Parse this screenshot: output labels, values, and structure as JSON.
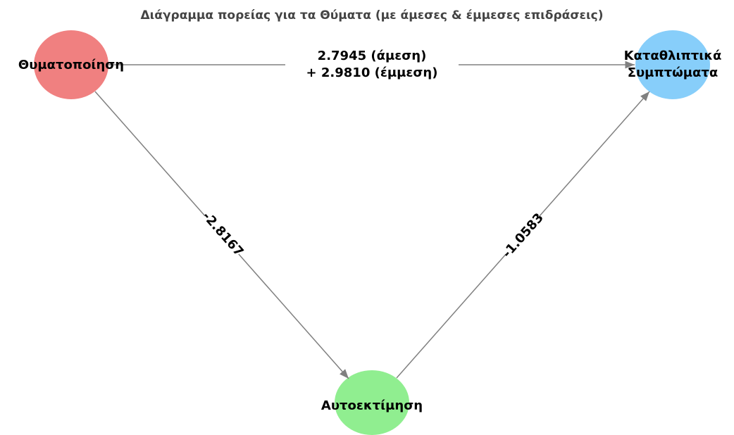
{
  "title": "Διάγραμμα πορείας για τα Θύματα (με άμεσες & έμμεσες επιδράσεις)",
  "nodes": [
    {
      "label": "Θυματοποίηση",
      "color": "#f08080"
    },
    {
      "label": [
        "Καταθλιπτικά",
        "Συμπτώματα"
      ],
      "color": "#87cefa"
    },
    {
      "label": "Αυτοεκτίμηση",
      "color": "#90ee90"
    }
  ],
  "edges": [
    {
      "label": [
        "2.7945 (άμεση)",
        "+ 2.9810 (έμμεση)"
      ]
    },
    {
      "label": "-2.8167"
    },
    {
      "label": "-1.0583"
    }
  ]
}
